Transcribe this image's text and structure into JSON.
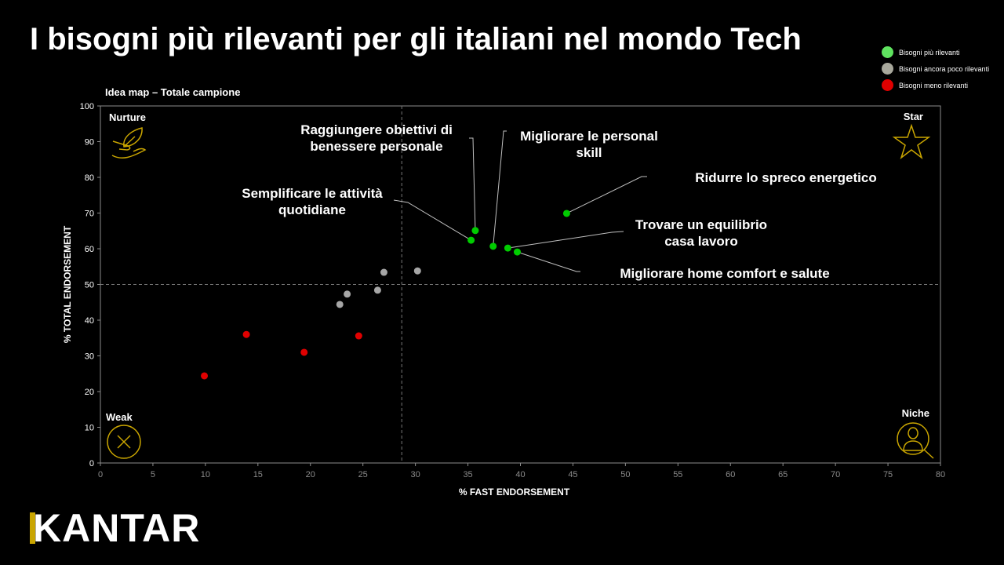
{
  "title": "I bisogni più rilevanti per gli italiani nel mondo Tech",
  "logo": "KANTAR",
  "legend": [
    {
      "label": "Bisogni più rilevanti",
      "color": "#5fe35f"
    },
    {
      "label": "Bisogni ancora poco rilevanti",
      "color": "#a8a89c"
    },
    {
      "label": "Bisogni meno rilevanti",
      "color": "#e00000"
    }
  ],
  "chart_data": {
    "type": "scatter",
    "title": "Idea map – Totale campione",
    "xlabel": "% FAST ENDORSEMENT",
    "ylabel": "% TOTAL ENDORSEMENT",
    "xlim": [
      0,
      80
    ],
    "ylim": [
      0,
      100
    ],
    "xticks": [
      0,
      5,
      10,
      15,
      20,
      25,
      30,
      35,
      40,
      45,
      50,
      55,
      60,
      65,
      70,
      75,
      80
    ],
    "yticks": [
      0,
      10,
      20,
      30,
      40,
      50,
      60,
      70,
      80,
      90,
      100
    ],
    "reference_lines": {
      "x": 28.7,
      "y": 50
    },
    "quadrants": [
      {
        "label": "Nurture",
        "icon": "hand-leaf-icon",
        "position": "top-left"
      },
      {
        "label": "Star",
        "icon": "star-icon",
        "position": "top-right"
      },
      {
        "label": "Weak",
        "icon": "x-circle-icon",
        "position": "bottom-left"
      },
      {
        "label": "Niche",
        "icon": "user-search-icon",
        "position": "bottom-right"
      }
    ],
    "series": [
      {
        "name": "Bisogni più rilevanti",
        "color": "#00cc00",
        "points": [
          {
            "x": 35.3,
            "y": 62.4,
            "label": "Semplificare le attività quotidiane"
          },
          {
            "x": 35.7,
            "y": 65.1,
            "label": "Raggiungere obiettivi di benessere personale"
          },
          {
            "x": 37.4,
            "y": 60.7,
            "label": "Migliorare le personal skill"
          },
          {
            "x": 38.8,
            "y": 60.2,
            "label": "Trovare un equilibrio casa lavoro"
          },
          {
            "x": 39.7,
            "y": 59.1,
            "label": "Migliorare home comfort e salute"
          },
          {
            "x": 44.4,
            "y": 69.9,
            "label": "Ridurre lo spreco energetico"
          }
        ]
      },
      {
        "name": "Bisogni ancora poco rilevanti",
        "color": "#a6a6a6",
        "points": [
          {
            "x": 22.8,
            "y": 44.4
          },
          {
            "x": 23.5,
            "y": 47.3
          },
          {
            "x": 26.4,
            "y": 48.4
          },
          {
            "x": 27.0,
            "y": 53.4
          },
          {
            "x": 30.2,
            "y": 53.8
          }
        ]
      },
      {
        "name": "Bisogni meno rilevanti",
        "color": "#e00000",
        "points": [
          {
            "x": 9.9,
            "y": 24.4
          },
          {
            "x": 13.9,
            "y": 36.0
          },
          {
            "x": 19.4,
            "y": 31.0
          },
          {
            "x": 24.6,
            "y": 35.6
          }
        ]
      }
    ]
  }
}
